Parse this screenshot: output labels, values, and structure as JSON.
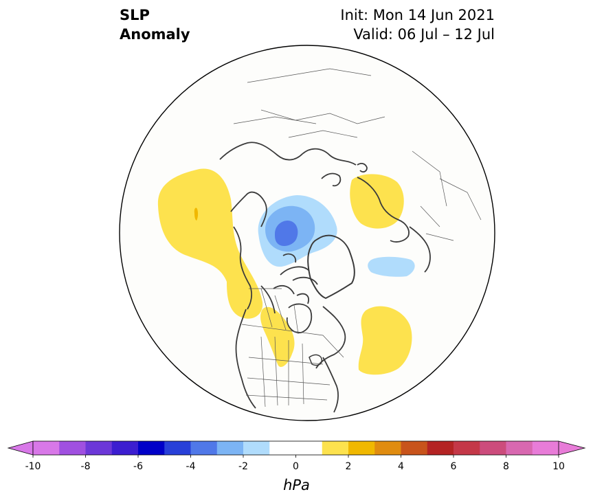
{
  "title": {
    "left_line1": "SLP",
    "left_line2": "Anomaly",
    "right_line1": "Init: Mon 14 Jun 2021",
    "right_line2": "Valid: 06 Jul – 12 Jul"
  },
  "map": {
    "projection": "north-polar-stereographic",
    "land_color": "#ffffff",
    "coastline_color": "#3a3a3a",
    "anomaly_features": [
      {
        "sign": "negative",
        "level": "-1 to -2",
        "color": "#b0dcfc",
        "region": "Arctic Ocean north of Canada"
      },
      {
        "sign": "negative",
        "level": "-2 to -3",
        "color": "#7cb4f4",
        "region": "Beaufort Sea"
      },
      {
        "sign": "negative",
        "level": "-3 to -4",
        "color": "#5078e8",
        "region": "Beaufort Sea center"
      },
      {
        "sign": "negative",
        "level": "-1 to -2",
        "color": "#b0dcfc",
        "region": "Central Siberia"
      },
      {
        "sign": "positive",
        "level": "1 to 2",
        "color": "#fde24e",
        "region": "North Pacific"
      },
      {
        "sign": "positive",
        "level": "2 to 3",
        "color": "#f0b800",
        "region": "Gulf of Alaska small spot"
      },
      {
        "sign": "positive",
        "level": "1 to 2",
        "color": "#fde24e",
        "region": "Scandinavia / Baltic"
      },
      {
        "sign": "positive",
        "level": "1 to 2",
        "color": "#fde24e",
        "region": "Central North Atlantic"
      },
      {
        "sign": "positive",
        "level": "1 to 2",
        "color": "#fde24e",
        "region": "Western Canada to US Rockies"
      }
    ]
  },
  "colorbar": {
    "levels": [
      -10,
      -9,
      -8,
      -7,
      -6,
      -5,
      -4,
      -3,
      -2,
      -1,
      1,
      2,
      3,
      4,
      5,
      6,
      7,
      8,
      9,
      10
    ],
    "colors": [
      "#d878e8",
      "#a050e0",
      "#6c38d8",
      "#3c1ed0",
      "#0000c8",
      "#2840d8",
      "#5078e8",
      "#7cb4f4",
      "#b0dcfc",
      "#ffffff",
      "#fde24e",
      "#f0b800",
      "#e08c10",
      "#c8541c",
      "#b42424",
      "#c43848",
      "#cc4c7c",
      "#d868b0",
      "#e87cd8"
    ],
    "tick_labels": [
      "-10",
      "-8",
      "-6",
      "-4",
      "-2",
      "0",
      "2",
      "4",
      "6",
      "8",
      "10"
    ],
    "tick_values": [
      -10,
      -8,
      -6,
      -4,
      -2,
      0,
      2,
      4,
      6,
      8,
      10
    ],
    "extend": "both",
    "under_color": "#d878e8",
    "over_color": "#e87cd8",
    "units": "hPa"
  }
}
